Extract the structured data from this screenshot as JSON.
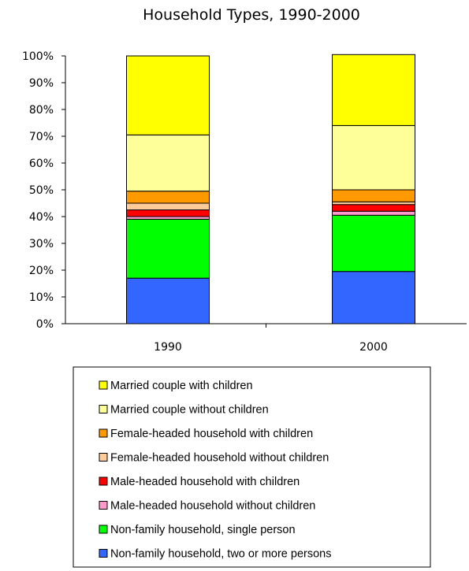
{
  "chart_data": {
    "type": "bar",
    "stacked": true,
    "title": "Household Types, 1990-2000",
    "categories": [
      "1990",
      "2000"
    ],
    "ylim": [
      0,
      100
    ],
    "yticks": [
      "0%",
      "10%",
      "20%",
      "30%",
      "40%",
      "50%",
      "60%",
      "70%",
      "80%",
      "90%",
      "100%"
    ],
    "grid": false,
    "legend_position": "bottom",
    "series": [
      {
        "name": "Non-family household, two or more persons",
        "color": "#3366ff",
        "values": [
          17,
          19.5
        ]
      },
      {
        "name": "Non-family household, single person",
        "color": "#00ff00",
        "values": [
          22,
          21
        ]
      },
      {
        "name": "Male-headed household without children",
        "color": "#ff99cc",
        "values": [
          1,
          1.5
        ]
      },
      {
        "name": "Male-headed household with children",
        "color": "#ff0000",
        "values": [
          2.5,
          2.5
        ]
      },
      {
        "name": "Female-headed household without children",
        "color": "#ffcc99",
        "values": [
          2.5,
          1
        ]
      },
      {
        "name": "Female-headed household with children",
        "color": "#ff9900",
        "values": [
          4.5,
          4.5
        ]
      },
      {
        "name": "Married couple without children",
        "color": "#ffff99",
        "values": [
          21,
          24
        ]
      },
      {
        "name": "Married couple with children",
        "color": "#ffff00",
        "values": [
          29.5,
          26.5
        ]
      }
    ]
  }
}
